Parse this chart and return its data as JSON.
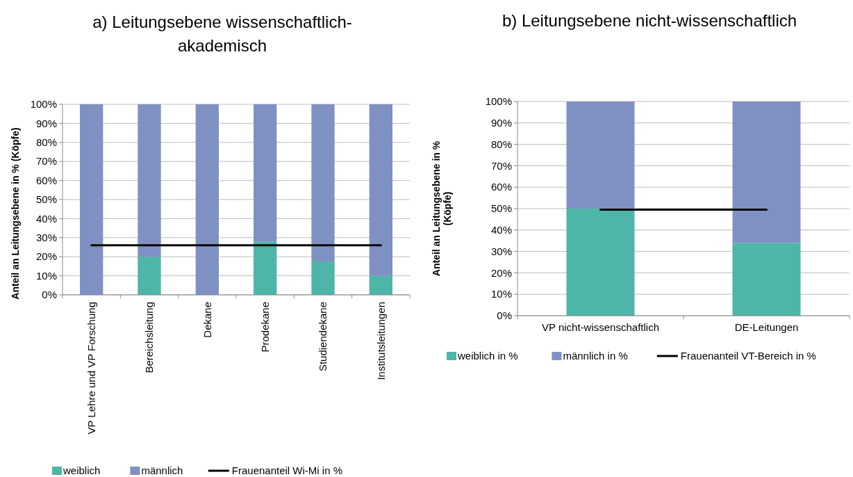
{
  "chart_data": [
    {
      "type": "bar",
      "title": "a)  Leitungsebene wissenschaftlich-akademisch",
      "ylabel": "Anteil an Leitungsebene in % (Köpfe)",
      "categories": [
        "VP Lehre und VP Forschung",
        "Bereichsleitung",
        "Dekane",
        "Prodekane",
        "Studiendekane",
        "Institutsleitungen"
      ],
      "stacked": true,
      "ylim": [
        0,
        100
      ],
      "yticks": [
        {
          "value": 0,
          "label": "0%"
        },
        {
          "value": 10,
          "label": "10%"
        },
        {
          "value": 20,
          "label": "20%"
        },
        {
          "value": 30,
          "label": "30%"
        },
        {
          "value": 40,
          "label": "40%"
        },
        {
          "value": 50,
          "label": "50%"
        },
        {
          "value": 60,
          "label": "60%"
        },
        {
          "value": 70,
          "label": "70%"
        },
        {
          "value": 80,
          "label": "80%"
        },
        {
          "value": 90,
          "label": "90%"
        },
        {
          "value": 100,
          "label": "100%"
        }
      ],
      "grid": "y",
      "legend": "bottom",
      "series": [
        {
          "name": "weiblich",
          "color": "#4db6a8",
          "values": [
            0,
            20,
            0,
            28,
            17.5,
            10
          ]
        },
        {
          "name": "männlich",
          "color": "#7f91c3",
          "values": [
            100,
            80,
            100,
            72,
            82.5,
            90
          ]
        },
        {
          "name": "Frauenanteil Wi-Mi in %",
          "type": "line",
          "color": "#000000",
          "values": [
            26,
            26,
            26,
            26,
            26,
            26
          ]
        }
      ]
    },
    {
      "type": "bar",
      "title": "b)  Leitungsebene nicht-wissenschaftlich",
      "ylabel": "Anteil an Leitungsebene in % (Köpfe)",
      "categories": [
        "VP nicht-wissenschaftlich",
        "DE-Leitungen"
      ],
      "stacked": true,
      "ylim": [
        0,
        100
      ],
      "yticks": [
        {
          "value": 0,
          "label": "0%"
        },
        {
          "value": 10,
          "label": "10%"
        },
        {
          "value": 20,
          "label": "20%"
        },
        {
          "value": 30,
          "label": "30%"
        },
        {
          "value": 40,
          "label": "40%"
        },
        {
          "value": 50,
          "label": "50%"
        },
        {
          "value": 60,
          "label": "60%"
        },
        {
          "value": 70,
          "label": "70%"
        },
        {
          "value": 80,
          "label": "80%"
        },
        {
          "value": 90,
          "label": "90%"
        },
        {
          "value": 100,
          "label": "100%"
        }
      ],
      "grid": "y",
      "legend": "bottom",
      "series": [
        {
          "name": "weiblich in %",
          "color": "#4db6a8",
          "values": [
            50,
            34
          ]
        },
        {
          "name": "männlich in %",
          "color": "#7f91c3",
          "values": [
            50,
            66
          ]
        },
        {
          "name": "Frauenanteil VT-Bereich in %",
          "type": "line",
          "color": "#000000",
          "values": [
            49.5,
            49.5
          ]
        }
      ]
    }
  ]
}
